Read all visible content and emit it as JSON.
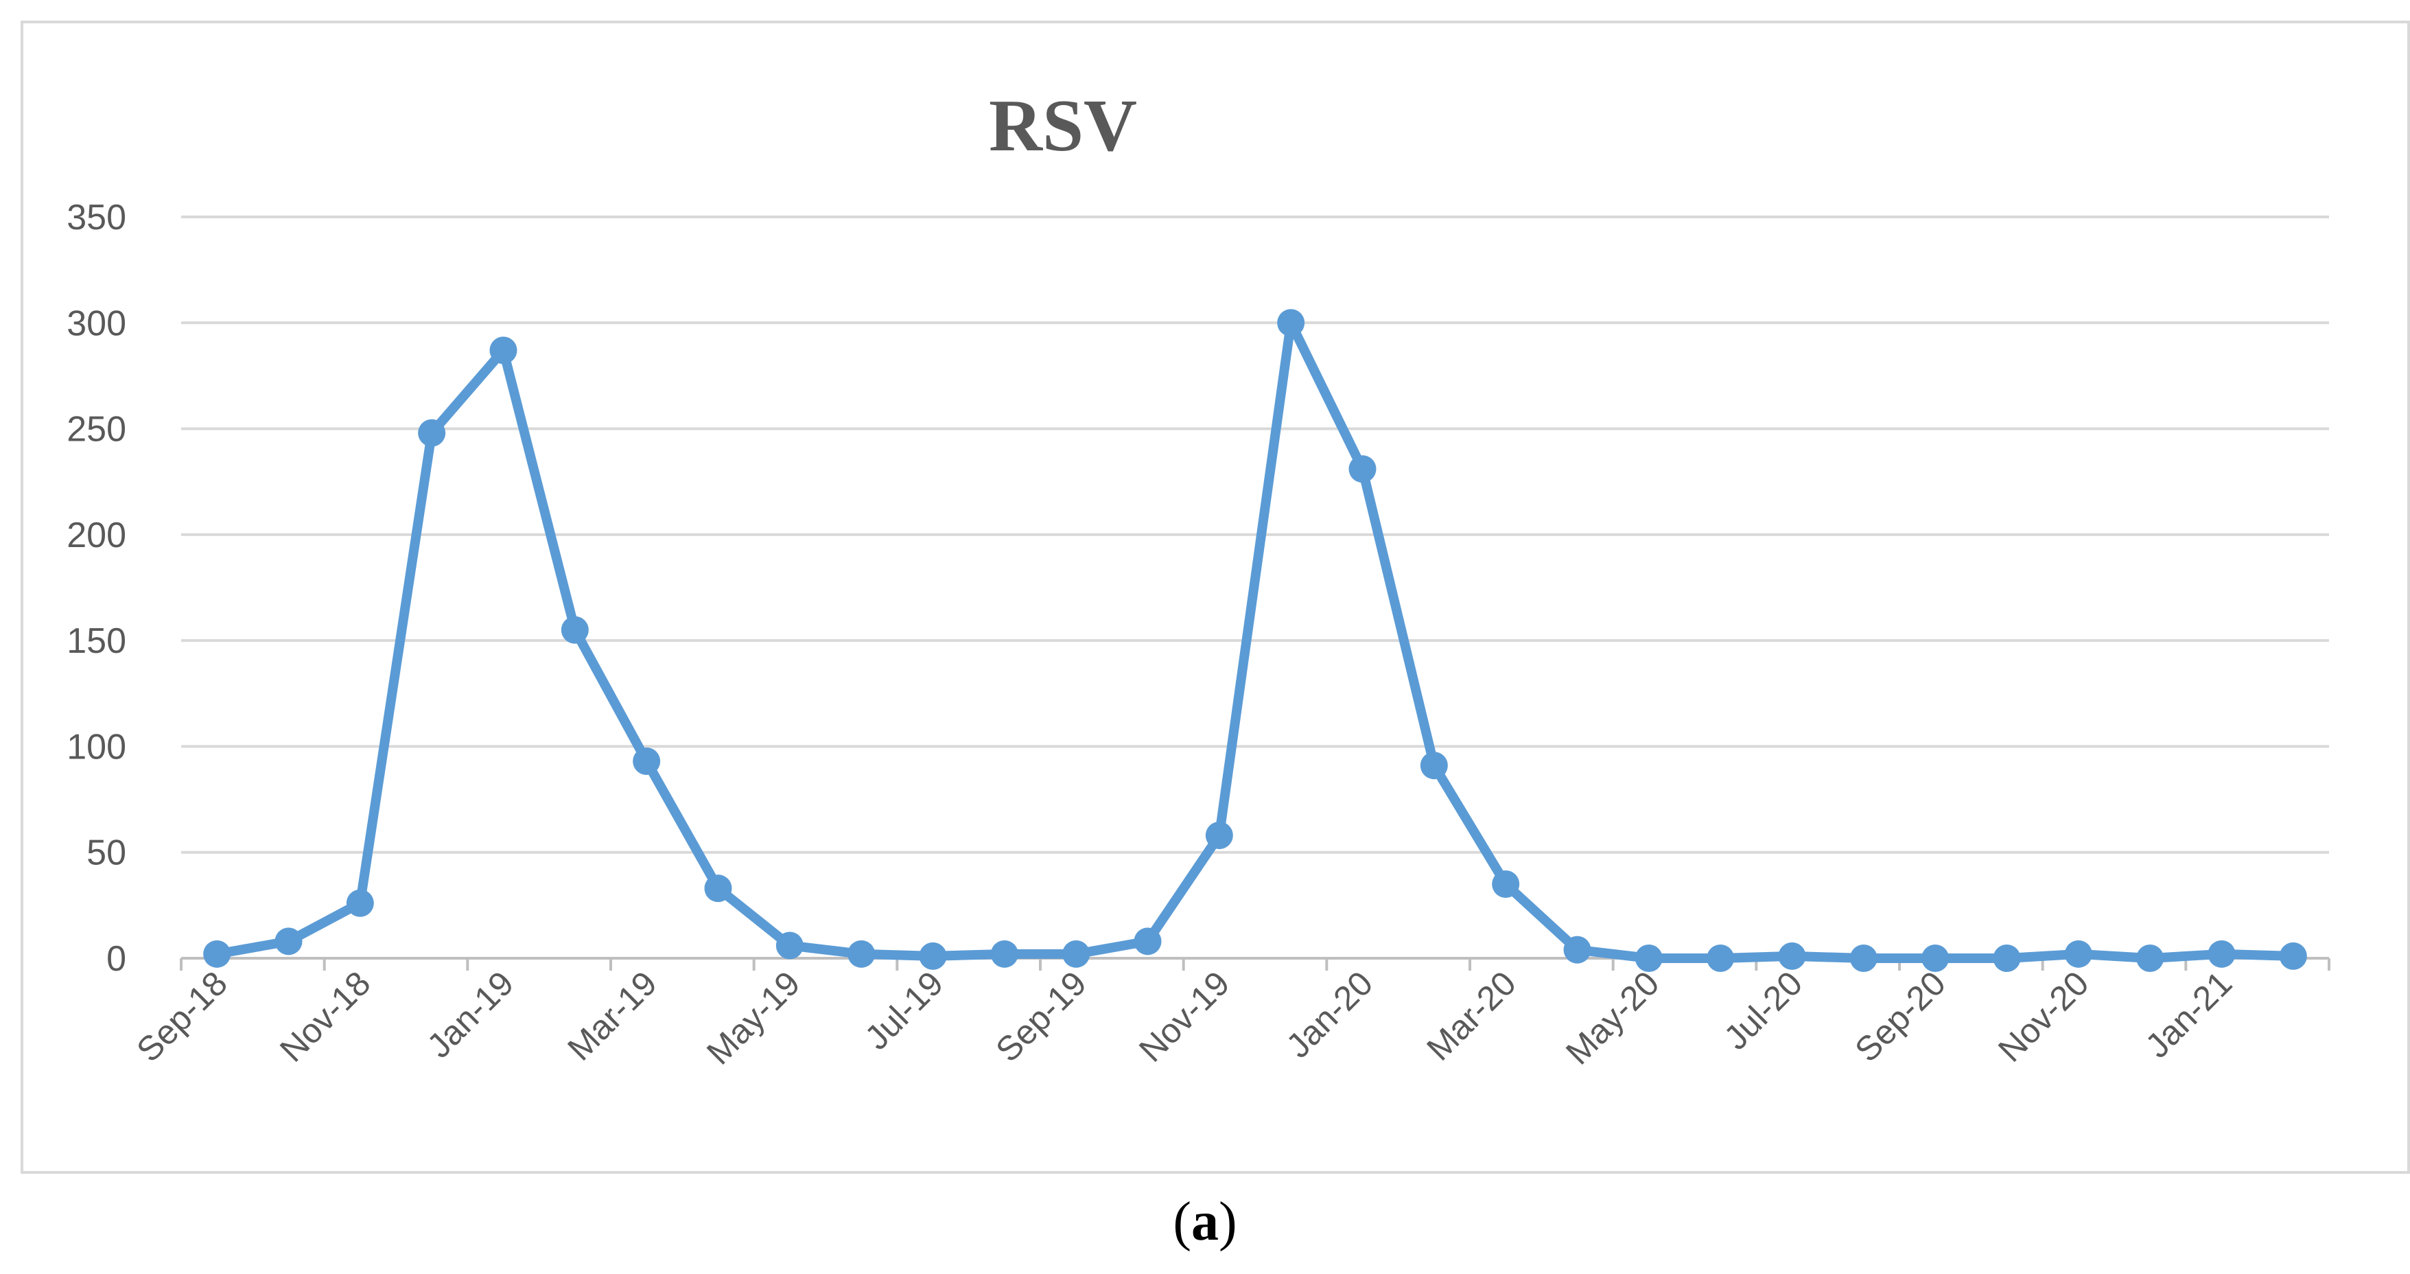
{
  "caption": {
    "open": "(",
    "letter": "a",
    "close": ")"
  },
  "chart_data": {
    "type": "line",
    "title": "RSV",
    "xlabel": "",
    "ylabel": "",
    "ylim": [
      0,
      350
    ],
    "yticks": [
      0,
      50,
      100,
      150,
      200,
      250,
      300,
      350
    ],
    "grid": true,
    "legend": "none",
    "x": [
      "Sep-18",
      "Oct-18",
      "Nov-18",
      "Dec-18",
      "Jan-19",
      "Feb-19",
      "Mar-19",
      "Apr-19",
      "May-19",
      "Jun-19",
      "Jul-19",
      "Aug-19",
      "Sep-19",
      "Oct-19",
      "Nov-19",
      "Dec-19",
      "Jan-20",
      "Feb-20",
      "Mar-20",
      "Apr-20",
      "May-20",
      "Jun-20",
      "Jul-20",
      "Aug-20",
      "Sep-20",
      "Oct-20",
      "Nov-20",
      "Dec-20",
      "Jan-21",
      "Feb-21"
    ],
    "xtick_labels": [
      "Sep-18",
      "Nov-18",
      "Jan-19",
      "Mar-19",
      "May-19",
      "Jul-19",
      "Sep-19",
      "Nov-19",
      "Jan-20",
      "Mar-20",
      "May-20",
      "Jul-20",
      "Sep-20",
      "Nov-20",
      "Jan-21"
    ],
    "series": [
      {
        "values": [
          2,
          8,
          26,
          248,
          287,
          155,
          93,
          33,
          6,
          2,
          1,
          2,
          2,
          8,
          58,
          300,
          231,
          91,
          35,
          4,
          0,
          0,
          1,
          0,
          0,
          0,
          2,
          0,
          2,
          1
        ]
      }
    ],
    "colors": {
      "line": "#5b9bd5",
      "grid": "#d9d9d9",
      "axis": "#bfbfbf",
      "text": "#595959"
    }
  }
}
